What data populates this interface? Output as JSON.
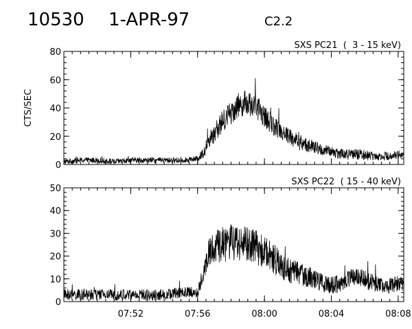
{
  "header": {
    "event_id": "10530",
    "date": "1-APR-97",
    "flare_class": "C2.2"
  },
  "chart_data": [
    {
      "type": "line",
      "title": "SXS PC21  (  3 - 15 keV)",
      "ylabel": "CTS/SEC",
      "xlabel": "",
      "xlim": [
        "07:48:00",
        "08:08:20"
      ],
      "ylim": [
        0,
        80
      ],
      "y_ticks": [
        0,
        20,
        40,
        60,
        80
      ],
      "x_ticks": [
        "07:52",
        "07:56",
        "08:00",
        "08:04",
        "08:08"
      ],
      "show_x_tick_labels": false,
      "grid": false,
      "series": [
        {
          "color": "#000000",
          "x": [
            "07:48:00",
            "07:49:00",
            "07:50:00",
            "07:51:00",
            "07:52:00",
            "07:53:00",
            "07:54:00",
            "07:55:00",
            "07:56:00",
            "07:56:20",
            "07:56:40",
            "07:57:00",
            "07:57:20",
            "07:57:40",
            "07:58:00",
            "07:58:20",
            "07:58:40",
            "07:59:00",
            "07:59:20",
            "07:59:40",
            "08:00:00",
            "08:00:30",
            "08:01:00",
            "08:01:30",
            "08:02:00",
            "08:02:30",
            "08:03:00",
            "08:03:30",
            "08:04:00",
            "08:04:30",
            "08:05:00",
            "08:05:30",
            "08:06:00",
            "08:06:30",
            "08:07:00",
            "08:07:30",
            "08:08:00",
            "08:08:20"
          ],
          "y": [
            2,
            3,
            3,
            2,
            3,
            3,
            3,
            3,
            4,
            8,
            17,
            22,
            28,
            33,
            37,
            41,
            43,
            44,
            42,
            39,
            34,
            28,
            24,
            20,
            16,
            14,
            12,
            10,
            9,
            8,
            7,
            7,
            7,
            6,
            6,
            6,
            7,
            7
          ],
          "noise": [
            2,
            2,
            2,
            2,
            2,
            2,
            2,
            2,
            2,
            4,
            6,
            7,
            8,
            8,
            9,
            9,
            9,
            9,
            9,
            8,
            8,
            7,
            7,
            6,
            6,
            5,
            5,
            4,
            4,
            4,
            4,
            4,
            4,
            3,
            3,
            3,
            3,
            3
          ]
        }
      ]
    },
    {
      "type": "line",
      "title": "SXS PC22  ( 15 - 40 keV)",
      "ylabel": "",
      "xlabel": "",
      "xlim": [
        "07:48:00",
        "08:08:20"
      ],
      "ylim": [
        0,
        50
      ],
      "y_ticks": [
        0,
        10,
        20,
        30,
        40,
        50
      ],
      "x_ticks": [
        "07:52",
        "07:56",
        "08:00",
        "08:04",
        "08:08"
      ],
      "show_x_tick_labels": true,
      "grid": false,
      "series": [
        {
          "color": "#000000",
          "x": [
            "07:48:00",
            "07:49:00",
            "07:50:00",
            "07:51:00",
            "07:52:00",
            "07:53:00",
            "07:54:00",
            "07:55:00",
            "07:56:00",
            "07:56:20",
            "07:56:40",
            "07:57:00",
            "07:57:30",
            "07:58:00",
            "07:58:30",
            "07:59:00",
            "07:59:30",
            "08:00:00",
            "08:00:30",
            "08:01:00",
            "08:01:30",
            "08:02:00",
            "08:02:30",
            "08:03:00",
            "08:03:30",
            "08:04:00",
            "08:04:30",
            "08:05:00",
            "08:05:30",
            "08:06:00",
            "08:06:30",
            "08:07:00",
            "08:07:30",
            "08:08:00",
            "08:08:20"
          ],
          "y": [
            3,
            3,
            3,
            3,
            3,
            3,
            3,
            4,
            4,
            12,
            22,
            24,
            25,
            26,
            26,
            25,
            24,
            22,
            19,
            16,
            14,
            13,
            11,
            10,
            8,
            7,
            8,
            10,
            11,
            10,
            8,
            7,
            7,
            8,
            8
          ],
          "noise": [
            2.5,
            2.5,
            2.5,
            2.5,
            2.5,
            2.5,
            2.5,
            2.5,
            2.5,
            4,
            6,
            7,
            8,
            8,
            8,
            8,
            8,
            7,
            7,
            6,
            6,
            5,
            5,
            4,
            4,
            4,
            4,
            4,
            4,
            4,
            4,
            3.5,
            3.5,
            3.5,
            3.5
          ]
        }
      ]
    }
  ]
}
